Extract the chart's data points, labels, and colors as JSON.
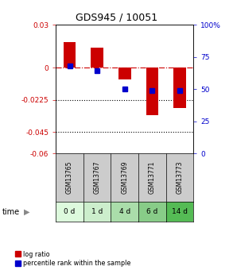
{
  "title": "GDS945 / 10051",
  "samples": [
    "GSM13765",
    "GSM13767",
    "GSM13769",
    "GSM13771",
    "GSM13773"
  ],
  "time_labels": [
    "0 d",
    "1 d",
    "4 d",
    "6 d",
    "14 d"
  ],
  "log_ratios": [
    0.018,
    0.014,
    -0.008,
    -0.033,
    -0.028
  ],
  "percentile_ranks": [
    68,
    64,
    50,
    49,
    49
  ],
  "bar_color": "#cc0000",
  "dot_color": "#0000cc",
  "ylim_left": [
    -0.06,
    0.03
  ],
  "ylim_right": [
    0,
    100
  ],
  "yticks_left": [
    0.03,
    0,
    -0.0225,
    -0.045,
    -0.06
  ],
  "ytick_labels_left": [
    "0.03",
    "0",
    "-0.0225",
    "-0.045",
    "-0.06"
  ],
  "yticks_right": [
    100,
    75,
    50,
    25,
    0
  ],
  "bg_color_gsm": "#cccccc",
  "time_row_colors": [
    "#ddffdd",
    "#cceecc",
    "#aaddaa",
    "#88cc88",
    "#55bb55"
  ],
  "legend_bar_label": "log ratio",
  "legend_dot_label": "percentile rank within the sample"
}
